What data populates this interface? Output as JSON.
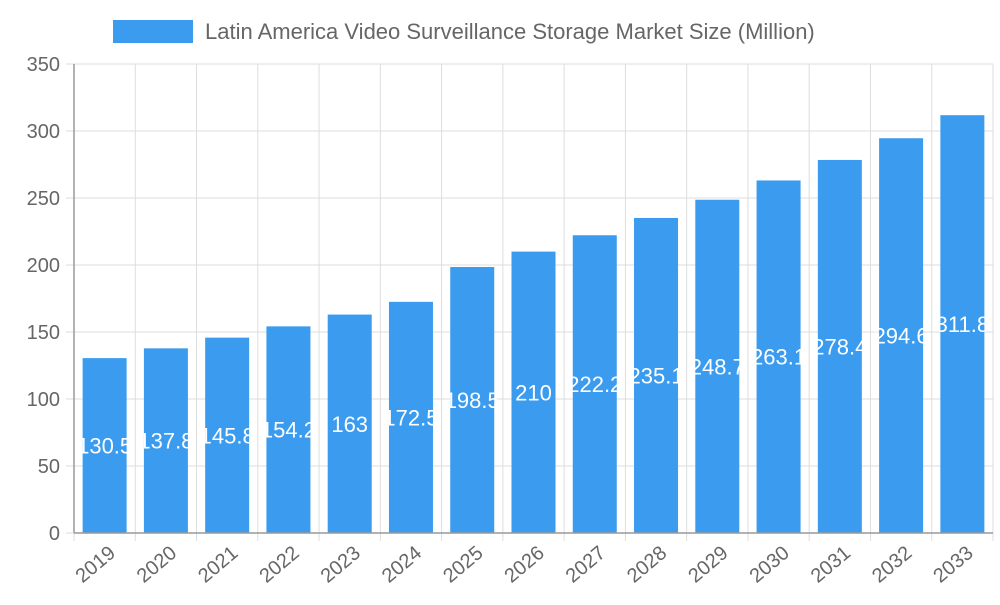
{
  "chart_data": {
    "type": "bar",
    "title": "",
    "xlabel": "",
    "ylabel": "",
    "legend": {
      "position": "top",
      "entries": [
        "Latin America Video Surveillance Storage Market Size (Million)"
      ]
    },
    "categories": [
      "2019",
      "2020",
      "2021",
      "2022",
      "2023",
      "2024",
      "2025",
      "2026",
      "2027",
      "2028",
      "2029",
      "2030",
      "2031",
      "2032",
      "2033"
    ],
    "series": [
      {
        "name": "Latin America Video Surveillance Storage Market Size (Million)",
        "values": [
          130.5,
          137.8,
          145.8,
          154.2,
          163,
          172.5,
          198.5,
          210,
          222.2,
          235.1,
          248.7,
          263.1,
          278.4,
          294.6,
          311.8
        ],
        "labels": [
          "130.5",
          "137.8",
          "145.8",
          "154.2",
          "163",
          "172.5",
          "198.5",
          "210",
          "222.2",
          "235.1",
          "248.7",
          "263.1",
          "278.4",
          "294.6",
          "311.8"
        ],
        "color": "#3a9bef"
      }
    ],
    "ylim": [
      0,
      350
    ],
    "yticks": [
      "0",
      "50",
      "100",
      "150",
      "200",
      "250",
      "300",
      "350"
    ],
    "grid": true
  }
}
